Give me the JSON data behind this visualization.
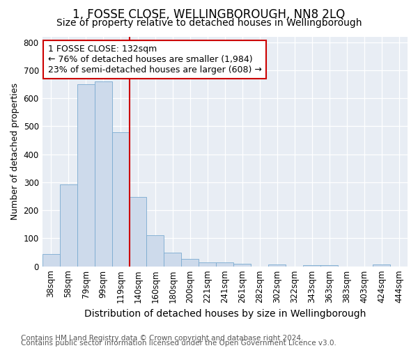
{
  "title": "1, FOSSE CLOSE, WELLINGBOROUGH, NN8 2LQ",
  "subtitle": "Size of property relative to detached houses in Wellingborough",
  "xlabel": "Distribution of detached houses by size in Wellingborough",
  "ylabel": "Number of detached properties",
  "categories": [
    "38sqm",
    "58sqm",
    "79sqm",
    "99sqm",
    "119sqm",
    "140sqm",
    "160sqm",
    "180sqm",
    "200sqm",
    "221sqm",
    "241sqm",
    "261sqm",
    "282sqm",
    "302sqm",
    "322sqm",
    "343sqm",
    "363sqm",
    "383sqm",
    "403sqm",
    "424sqm",
    "444sqm"
  ],
  "values": [
    45,
    292,
    650,
    660,
    478,
    247,
    112,
    50,
    27,
    14,
    14,
    8,
    0,
    7,
    0,
    5,
    5,
    0,
    0,
    7,
    0
  ],
  "bar_color": "#cddaeb",
  "bar_edge_color": "#7aaad0",
  "vline_color": "#cc0000",
  "annotation_line1": "1 FOSSE CLOSE: 132sqm",
  "annotation_line2": "← 76% of detached houses are smaller (1,984)",
  "annotation_line3": "23% of semi-detached houses are larger (608) →",
  "annotation_box_facecolor": "#ffffff",
  "annotation_box_edgecolor": "#cc0000",
  "ylim": [
    0,
    820
  ],
  "yticks": [
    0,
    100,
    200,
    300,
    400,
    500,
    600,
    700,
    800
  ],
  "bg_color": "#e8edf4",
  "footer1": "Contains HM Land Registry data © Crown copyright and database right 2024.",
  "footer2": "Contains public sector information licensed under the Open Government Licence v3.0.",
  "title_fontsize": 12,
  "subtitle_fontsize": 10,
  "xlabel_fontsize": 10,
  "ylabel_fontsize": 9,
  "tick_fontsize": 8.5,
  "annotation_fontsize": 9,
  "footer_fontsize": 7.5
}
